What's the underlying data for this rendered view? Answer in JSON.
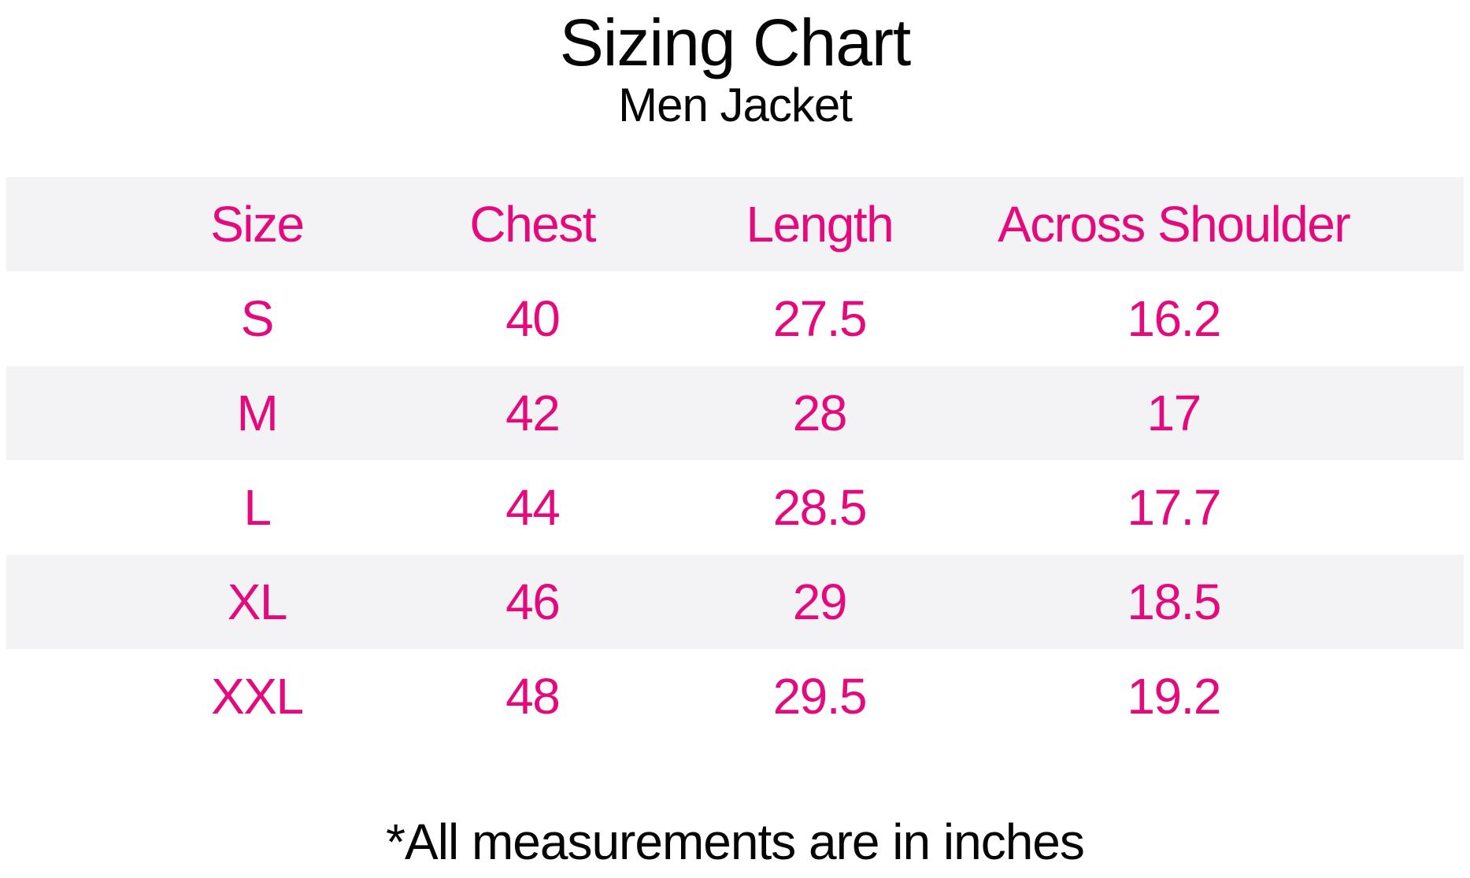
{
  "page": {
    "title": "Sizing Chart",
    "subtitle": "Men Jacket",
    "footnote": "*All measurements are in inches"
  },
  "colors": {
    "accent_pink": "#E4097D",
    "stripe_gray": "#F3F3F5",
    "background": "#FFFFFF",
    "heading_black": "#050505"
  },
  "chart_data": {
    "type": "table",
    "title": "Sizing Chart",
    "subtitle": "Men Jacket",
    "columns": [
      "Size",
      "Chest",
      "Length",
      "Across Shoulder"
    ],
    "rows": [
      [
        "S",
        40,
        27.5,
        16.2
      ],
      [
        "M",
        42,
        28,
        17
      ],
      [
        "L",
        44,
        28.5,
        17.7
      ],
      [
        "XL",
        46,
        29,
        18.5
      ],
      [
        "XXL",
        48,
        29.5,
        19.2
      ]
    ],
    "units": "inches",
    "footnote": "*All measurements are in inches",
    "layout": {
      "striped_rows": true,
      "stripe_color": "#F3F3F5",
      "header_background": "#F3F3F5",
      "table_text_color": "#E4097D",
      "heading_text_color": "#050505",
      "grid": false
    }
  }
}
